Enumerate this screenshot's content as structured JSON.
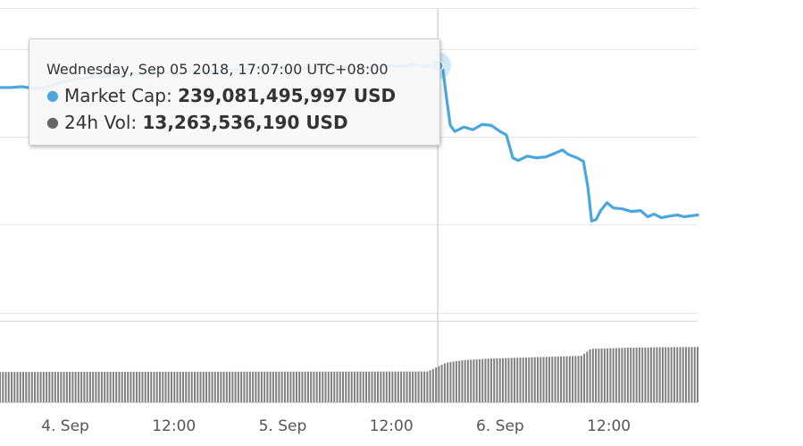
{
  "colors": {
    "market_cap": "#4ba6e0",
    "volume": "#808080",
    "grid": "#e6e6e6",
    "crosshair": "#c0c0c0"
  },
  "tooltip": {
    "date": "Wednesday, Sep 05 2018, 17:07:00 UTC+08:00",
    "rows": [
      {
        "label": "Market Cap:",
        "value": "239,081,495,997 USD",
        "color": "#4ba6e0"
      },
      {
        "label": "24h Vol:",
        "value": "13,263,536,190 USD",
        "color": "#666666"
      }
    ]
  },
  "chart_data": {
    "type": "line",
    "x_axis": {
      "unit": "hours since Sep 4 00:00 (UTC+08:00)",
      "range": [
        -7.2,
        69.8
      ],
      "ticks": [
        {
          "value": 0,
          "label": "4. Sep"
        },
        {
          "value": 12,
          "label": "12:00"
        },
        {
          "value": 24,
          "label": "5. Sep"
        },
        {
          "value": 36,
          "label": "12:00"
        },
        {
          "value": 48,
          "label": "6. Sep"
        },
        {
          "value": 60,
          "label": "12:00"
        }
      ]
    },
    "crosshair_x": 41.12,
    "grid": true,
    "series": [
      {
        "name": "Market Cap",
        "type": "line",
        "unit": "USD",
        "values": [
          [
            -7.2,
            236.6
          ],
          [
            -6.0,
            236.6
          ],
          [
            -4.8,
            236.7
          ],
          [
            -3.5,
            236.5
          ],
          [
            -2.3,
            236.6
          ],
          [
            -1.0,
            237.0
          ],
          [
            0.0,
            237.3
          ],
          [
            1.5,
            237.6
          ],
          [
            3.0,
            237.8
          ],
          [
            4.5,
            237.9
          ],
          [
            6.0,
            238.0
          ],
          [
            7.5,
            238.1
          ],
          [
            9.0,
            238.2
          ],
          [
            10.5,
            238.3
          ],
          [
            12.0,
            238.3
          ],
          [
            13.5,
            238.4
          ],
          [
            15.0,
            238.5
          ],
          [
            16.5,
            238.5
          ],
          [
            18.0,
            238.6
          ],
          [
            19.5,
            238.6
          ],
          [
            21.0,
            238.7
          ],
          [
            22.5,
            238.7
          ],
          [
            24.0,
            238.8
          ],
          [
            25.5,
            238.8
          ],
          [
            27.0,
            238.8
          ],
          [
            28.5,
            238.9
          ],
          [
            30.0,
            238.9
          ],
          [
            31.5,
            238.9
          ],
          [
            33.0,
            238.9
          ],
          [
            34.5,
            239.0
          ],
          [
            36.0,
            239.1
          ],
          [
            37.3,
            239.0
          ],
          [
            38.5,
            239.2
          ],
          [
            39.6,
            239.0
          ],
          [
            40.5,
            239.1
          ],
          [
            41.12,
            239.08
          ],
          [
            41.7,
            238.6
          ],
          [
            42.1,
            235.3
          ],
          [
            42.5,
            232.3
          ],
          [
            43.0,
            231.6
          ],
          [
            44.0,
            232.1
          ],
          [
            45.0,
            231.8
          ],
          [
            46.0,
            232.4
          ],
          [
            47.0,
            232.3
          ],
          [
            48.0,
            231.6
          ],
          [
            48.7,
            231.2
          ],
          [
            49.4,
            228.6
          ],
          [
            50.0,
            228.3
          ],
          [
            51.0,
            228.8
          ],
          [
            52.0,
            228.6
          ],
          [
            53.0,
            228.7
          ],
          [
            54.0,
            229.1
          ],
          [
            54.9,
            229.5
          ],
          [
            55.5,
            229.0
          ],
          [
            56.5,
            228.6
          ],
          [
            57.2,
            228.2
          ],
          [
            57.7,
            225.2
          ],
          [
            58.1,
            221.4
          ],
          [
            58.6,
            221.6
          ],
          [
            59.1,
            222.6
          ],
          [
            59.8,
            223.5
          ],
          [
            60.5,
            222.9
          ],
          [
            61.5,
            222.8
          ],
          [
            62.5,
            222.5
          ],
          [
            63.5,
            222.6
          ],
          [
            64.3,
            221.9
          ],
          [
            65.0,
            222.2
          ],
          [
            65.8,
            221.8
          ],
          [
            66.8,
            222.0
          ],
          [
            67.6,
            222.1
          ],
          [
            68.3,
            221.9
          ],
          [
            69.8,
            222.1
          ]
        ],
        "y_axis": {
          "range": [
            208.94,
            245.54
          ],
          "gridlines": [
            241.0,
            231.0,
            221.0,
            211.0
          ]
        }
      },
      {
        "name": "24h Vol",
        "type": "column",
        "unit": "USD",
        "values": [
          [
            -7.2,
            11.3
          ],
          [
            0.0,
            11.32
          ],
          [
            12.0,
            11.36
          ],
          [
            24.0,
            11.4
          ],
          [
            35.0,
            11.43
          ],
          [
            40.0,
            11.46
          ],
          [
            41.12,
            13.26
          ],
          [
            42.0,
            14.7
          ],
          [
            44.0,
            15.7
          ],
          [
            47.0,
            16.3
          ],
          [
            52.0,
            16.8
          ],
          [
            57.0,
            17.3
          ],
          [
            58.0,
            19.9
          ],
          [
            62.0,
            20.3
          ],
          [
            66.0,
            20.5
          ],
          [
            69.8,
            20.6
          ]
        ],
        "y_axis": {
          "range": [
            0,
            30
          ]
        }
      }
    ]
  }
}
